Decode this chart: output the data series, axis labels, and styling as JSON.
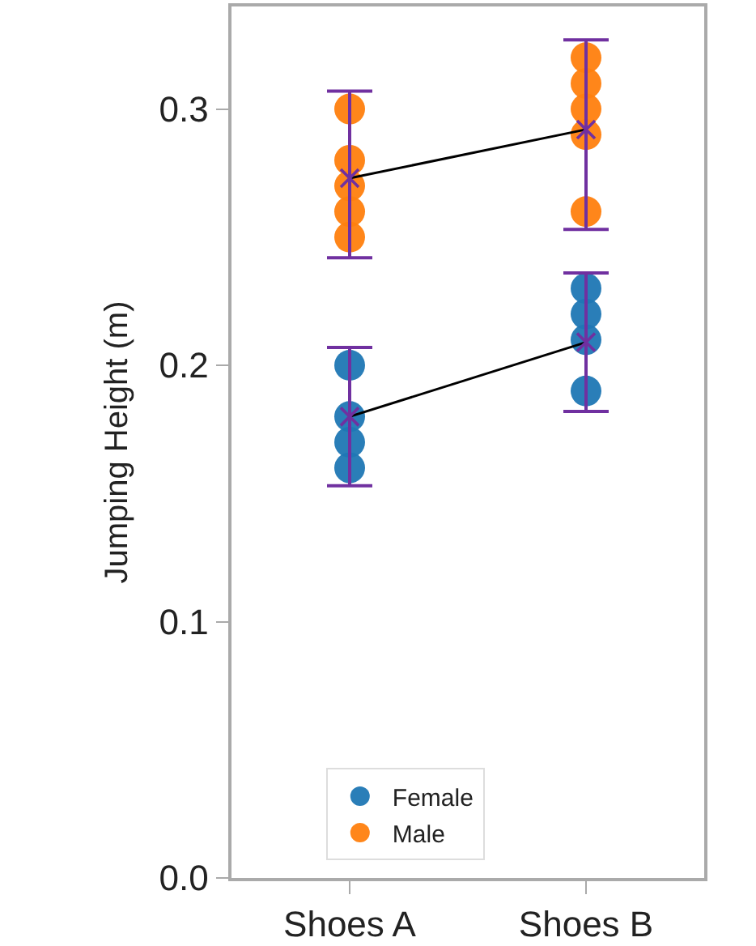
{
  "chart_data": {
    "type": "scatter",
    "ylabel": "Jumping Height (m)",
    "categories": [
      "Shoes A",
      "Shoes B"
    ],
    "ylim": [
      0,
      0.34
    ],
    "yticks": [
      {
        "value": 0,
        "label": "0.0"
      },
      0.1,
      0.2,
      0.3
    ],
    "grid": false,
    "legend": "bottom",
    "marker": "circle",
    "series": [
      {
        "name": "Female",
        "color": "#1f77b4",
        "x": [
          "Shoes A",
          "Shoes A",
          "Shoes A",
          "Shoes A",
          "Shoes B",
          "Shoes B",
          "Shoes B",
          "Shoes B"
        ],
        "values": [
          0.16,
          0.17,
          0.18,
          0.2,
          0.19,
          0.21,
          0.22,
          0.23
        ]
      },
      {
        "name": "Male",
        "color": "#ff7f0e",
        "x": [
          "Shoes A",
          "Shoes A",
          "Shoes A",
          "Shoes A",
          "Shoes A",
          "Shoes B",
          "Shoes B",
          "Shoes B",
          "Shoes B",
          "Shoes B"
        ],
        "values": [
          0.25,
          0.26,
          0.27,
          0.28,
          0.3,
          0.26,
          0.29,
          0.3,
          0.31,
          0.32
        ]
      },
      {
        "color": "#000000",
        "type": "line",
        "marker": "none",
        "values": [
          0.18,
          0.209
        ]
      },
      {
        "color": "#000000",
        "type": "line",
        "marker": "none",
        "values": [
          0.273,
          0.292
        ]
      },
      {
        "color": "#7030a0",
        "marker": "cross",
        "values": [
          0.18,
          0.209
        ],
        "errors": [
          [
            0.153,
            0.207
          ],
          [
            0.182,
            0.236
          ]
        ]
      },
      {
        "color": "#7030a0",
        "marker": "cross",
        "values": [
          0.273,
          0.292
        ],
        "errors": [
          [
            0.242,
            0.307
          ],
          [
            0.253,
            0.327
          ]
        ]
      }
    ]
  }
}
